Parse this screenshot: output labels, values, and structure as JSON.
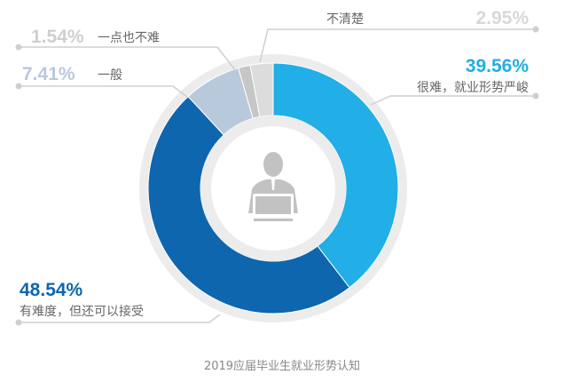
{
  "chart_data": {
    "type": "pie",
    "variant": "donut",
    "title": "2019应届毕业生就业形势认知",
    "start_angle": "top, clockwise",
    "slices": [
      {
        "label": "很难，就业形势严峻",
        "value": 39.56,
        "value_label": "39.56%",
        "color": "#22aee6",
        "label_color": "#22aee6"
      },
      {
        "label": "有难度，但还可以接受",
        "value": 48.54,
        "value_label": "48.54%",
        "color": "#0e66ae",
        "label_color": "#0e66ae"
      },
      {
        "label": "一般",
        "value": 7.41,
        "value_label": "7.41%",
        "color": "#b9c9dc",
        "label_color": "#b9c9dc"
      },
      {
        "label": "一点也不难",
        "value": 1.54,
        "value_label": "1.54%",
        "color": "#c6c6c6",
        "label_color": "#cfcfcf"
      },
      {
        "label": "不清楚",
        "value": 2.95,
        "value_label": "2.95%",
        "color": "#dcdcdc",
        "label_color": "#d8d8d8"
      }
    ],
    "center_icon": "person-at-laptop-icon"
  }
}
